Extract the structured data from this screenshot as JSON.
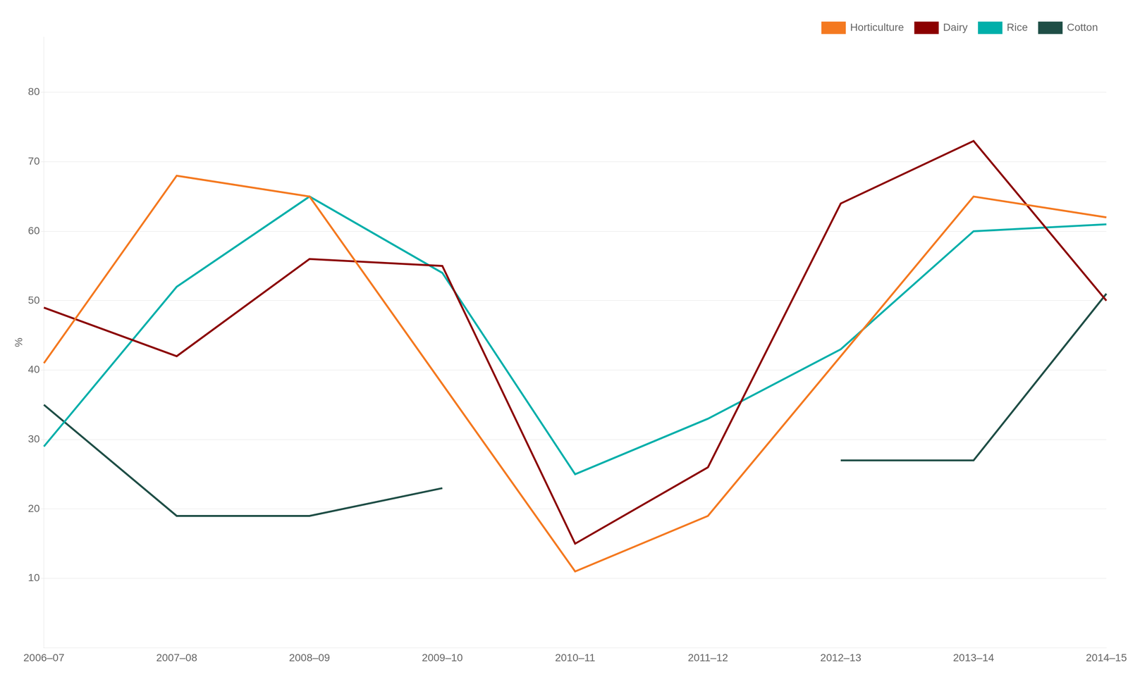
{
  "chart_data": {
    "type": "line",
    "ylabel": "%",
    "categories": [
      "2006–07",
      "2007–08",
      "2008–09",
      "2009–10",
      "2010–11",
      "2011–12",
      "2012–13",
      "2013–14",
      "2014–15"
    ],
    "series": [
      {
        "name": "Horticulture",
        "color": "#F47920",
        "values": [
          41,
          68,
          65,
          38,
          11,
          19,
          42,
          65,
          62
        ]
      },
      {
        "name": "Dairy",
        "color": "#8B0000",
        "values": [
          49,
          42,
          56,
          55,
          15,
          26,
          64,
          73,
          50
        ]
      },
      {
        "name": "Rice",
        "color": "#00AFAA",
        "values": [
          29,
          52,
          65,
          54,
          25,
          33,
          43,
          60,
          61
        ]
      },
      {
        "name": "Cotton",
        "color": "#1F4E46",
        "values": [
          35,
          19,
          19,
          23,
          null,
          null,
          27,
          27,
          51
        ]
      }
    ],
    "ylim": [
      0,
      88
    ],
    "yticks": [
      10,
      20,
      30,
      40,
      50,
      60,
      70,
      80
    ],
    "grid": true,
    "legend": "upper right"
  }
}
